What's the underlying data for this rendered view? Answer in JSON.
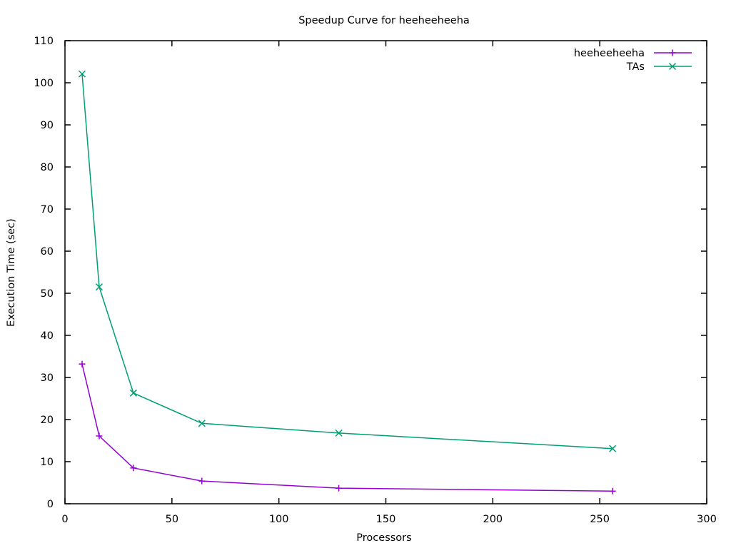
{
  "chart_data": {
    "type": "line",
    "title": "Speedup Curve for heeheeheeha",
    "xlabel": "Processors",
    "ylabel": "Execution Time (sec)",
    "xlim": [
      0,
      300
    ],
    "ylim": [
      0,
      110
    ],
    "x_ticks": [
      0,
      50,
      100,
      150,
      200,
      250,
      300
    ],
    "y_ticks": [
      0,
      10,
      20,
      30,
      40,
      50,
      60,
      70,
      80,
      90,
      100,
      110
    ],
    "grid": false,
    "legend_position": "top-right",
    "series": [
      {
        "name": "heeheeheeha",
        "color": "#9400d3",
        "marker": "plus",
        "x": [
          8,
          16,
          32,
          64,
          128,
          256
        ],
        "y": [
          33.2,
          16.1,
          8.5,
          5.4,
          3.7,
          3.0
        ]
      },
      {
        "name": "TAs",
        "color": "#009e73",
        "marker": "cross",
        "x": [
          8,
          16,
          32,
          64,
          128,
          256
        ],
        "y": [
          102.1,
          51.5,
          26.3,
          19.1,
          16.8,
          13.1
        ]
      }
    ]
  }
}
